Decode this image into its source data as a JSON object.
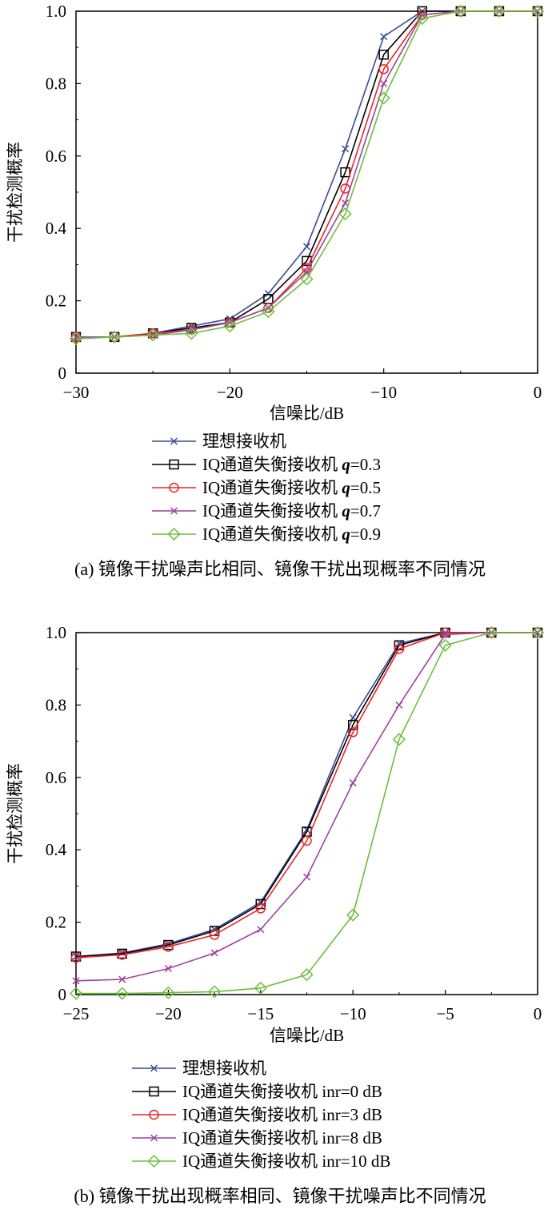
{
  "chart_data": [
    {
      "type": "line",
      "caption": "(a) 镜像干扰噪声比相同、镜像干扰出现概率不同情况",
      "xlabel": "信噪比/dB",
      "ylabel": "干扰检测概率",
      "xlim": [
        -30,
        0
      ],
      "ylim": [
        0,
        1.0
      ],
      "x_ticks": [
        "−30",
        "−20",
        "−10",
        "0"
      ],
      "y_ticks": [
        "0",
        "0.2",
        "0.4",
        "0.6",
        "0.8",
        "1.0"
      ],
      "grid": false,
      "legend_position": "below-plot",
      "x": [
        -30,
        -27.5,
        -25,
        -22.5,
        -20,
        -17.5,
        -15,
        -12.5,
        -10,
        -7.5,
        -5,
        -2.5,
        0
      ],
      "series": [
        {
          "legend": {
            "prefix": "理想接收机",
            "var": "",
            "eq": ""
          },
          "color": "#3a4a9a",
          "marker": "x",
          "values": [
            0.1,
            0.1,
            0.11,
            0.13,
            0.15,
            0.22,
            0.35,
            0.62,
            0.93,
            1.0,
            1.0,
            1.0,
            1.0
          ]
        },
        {
          "legend": {
            "prefix": "IQ通道失衡接收机 ",
            "var": "q",
            "eq": "=0.3"
          },
          "color": "#000000",
          "marker": "square",
          "values": [
            0.1,
            0.1,
            0.11,
            0.125,
            0.14,
            0.205,
            0.31,
            0.555,
            0.88,
            1.0,
            1.0,
            1.0,
            1.0
          ]
        },
        {
          "legend": {
            "prefix": "IQ通道失衡接收机 ",
            "var": "q",
            "eq": "=0.5"
          },
          "color": "#e8262a",
          "marker": "circle",
          "values": [
            0.1,
            0.1,
            0.11,
            0.12,
            0.14,
            0.18,
            0.29,
            0.51,
            0.84,
            0.99,
            1.0,
            1.0,
            1.0
          ]
        },
        {
          "legend": {
            "prefix": "IQ通道失衡接收机 ",
            "var": "q",
            "eq": "=0.7"
          },
          "color": "#a040a0",
          "marker": "x",
          "values": [
            0.1,
            0.1,
            0.105,
            0.12,
            0.14,
            0.18,
            0.28,
            0.47,
            0.8,
            0.99,
            1.0,
            1.0,
            1.0
          ]
        },
        {
          "legend": {
            "prefix": "IQ通道失衡接收机 ",
            "var": "q",
            "eq": "=0.9"
          },
          "color": "#6cbf3a",
          "marker": "diamond",
          "values": [
            0.095,
            0.1,
            0.105,
            0.11,
            0.13,
            0.17,
            0.26,
            0.44,
            0.76,
            0.98,
            1.0,
            1.0,
            1.0
          ]
        }
      ]
    },
    {
      "type": "line",
      "caption": "(b) 镜像干扰出现概率相同、镜像干扰噪声比不同情况",
      "xlabel": "信噪比/dB",
      "ylabel": "干扰检测概率",
      "xlim": [
        -25,
        0
      ],
      "ylim": [
        0,
        1.0
      ],
      "x_ticks": [
        "−25",
        "−20",
        "−15",
        "−10",
        "−5",
        "0"
      ],
      "y_ticks": [
        "0",
        "0.2",
        "0.4",
        "0.6",
        "0.8",
        "1.0"
      ],
      "grid": false,
      "legend_position": "below-plot",
      "x": [
        -25,
        -22.5,
        -20,
        -17.5,
        -15,
        -12.5,
        -10,
        -7.5,
        -5,
        -2.5,
        0
      ],
      "series": [
        {
          "legend": {
            "prefix": "理想接收机",
            "var": "",
            "eq": ""
          },
          "color": "#3a4a9a",
          "marker": "x",
          "values": [
            0.105,
            0.115,
            0.14,
            0.18,
            0.255,
            0.455,
            0.765,
            0.97,
            1.0,
            1.0,
            1.0
          ]
        },
        {
          "legend": {
            "prefix": "IQ通道失衡接收机 inr=0 dB",
            "var": "",
            "eq": ""
          },
          "color": "#000000",
          "marker": "square",
          "values": [
            0.105,
            0.113,
            0.137,
            0.176,
            0.25,
            0.45,
            0.745,
            0.965,
            1.0,
            1.0,
            1.0
          ]
        },
        {
          "legend": {
            "prefix": "IQ通道失衡接收机 inr=3 dB",
            "var": "",
            "eq": ""
          },
          "color": "#e8262a",
          "marker": "circle",
          "values": [
            0.102,
            0.11,
            0.132,
            0.165,
            0.238,
            0.425,
            0.725,
            0.955,
            1.0,
            1.0,
            1.0
          ]
        },
        {
          "legend": {
            "prefix": "IQ通道失衡接收机 inr=8 dB",
            "var": "",
            "eq": ""
          },
          "color": "#a040a0",
          "marker": "x",
          "values": [
            0.038,
            0.042,
            0.072,
            0.115,
            0.18,
            0.325,
            0.585,
            0.8,
            0.995,
            1.0,
            1.0
          ]
        },
        {
          "legend": {
            "prefix": "IQ通道失衡接收机 inr=10 dB",
            "var": "",
            "eq": ""
          },
          "color": "#6cbf3a",
          "marker": "diamond",
          "values": [
            0.003,
            0.003,
            0.005,
            0.008,
            0.018,
            0.055,
            0.22,
            0.705,
            0.965,
            1.0,
            1.0
          ]
        }
      ]
    }
  ]
}
